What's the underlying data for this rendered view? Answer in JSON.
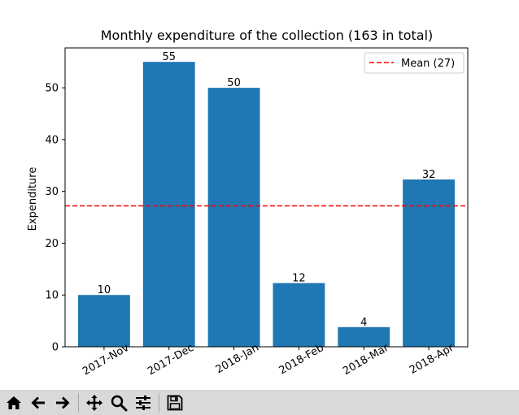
{
  "chart_data": {
    "type": "bar",
    "title": "Monthly expenditure of the collection (163 in total)",
    "xlabel": "",
    "ylabel": "Expenditure",
    "categories": [
      "2017-Nov",
      "2017-Dec",
      "2018-Jan",
      "2018-Feb",
      "2018-Mar",
      "2018-Apr"
    ],
    "values": [
      10,
      55,
      50,
      12.3,
      3.8,
      32.3
    ],
    "data_labels": [
      "10",
      "55",
      "50",
      "12",
      "4",
      "32"
    ],
    "ylim": [
      0,
      57.7
    ],
    "yticks": [
      0,
      10,
      20,
      30,
      40,
      50
    ],
    "mean_line": {
      "value": 27.2,
      "label": "Mean (27)",
      "color": "#ff0000",
      "style": "dashed"
    },
    "bar_color": "#1f77b4",
    "legend_position": "upper right",
    "grid": false
  },
  "toolbar": {
    "buttons": [
      {
        "name": "home",
        "icon": "home-icon"
      },
      {
        "name": "back",
        "icon": "back-arrow-icon"
      },
      {
        "name": "forward",
        "icon": "forward-arrow-icon"
      },
      {
        "name": "pan",
        "icon": "pan-move-icon"
      },
      {
        "name": "zoom",
        "icon": "zoom-magnifier-icon"
      },
      {
        "name": "configure-subplots",
        "icon": "sliders-icon"
      },
      {
        "name": "save",
        "icon": "save-floppy-icon"
      }
    ]
  }
}
